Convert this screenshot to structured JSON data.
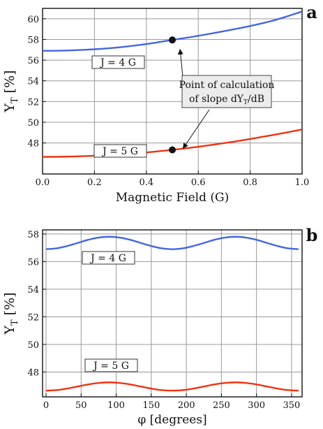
{
  "chart_data": [
    {
      "type": "line",
      "panel_label": "a",
      "xlabel": "Magnetic Field (G)",
      "ylabel_main": "Y",
      "ylabel_sub": "T",
      "ylabel_unit": "[%]",
      "xlim": [
        0.0,
        1.0
      ],
      "ylim": [
        45.0,
        61.0
      ],
      "x_ticks": [
        0.0,
        0.2,
        0.4,
        0.6,
        0.8,
        1.0
      ],
      "x_tick_labels": [
        "0.0",
        "0.2",
        "0.4",
        "0.6",
        "0.8",
        "1.0"
      ],
      "y_ticks": [
        48,
        50,
        52,
        54,
        56,
        58,
        60
      ],
      "y_tick_labels": [
        "48",
        "50",
        "52",
        "54",
        "56",
        "58",
        "60"
      ],
      "grid": true,
      "series": [
        {
          "name": "J = 4 G",
          "color": "#4466dd",
          "x": [
            0.0,
            0.1,
            0.2,
            0.3,
            0.4,
            0.5,
            0.6,
            0.7,
            0.8,
            0.9,
            1.0
          ],
          "values": [
            56.9,
            56.94,
            57.05,
            57.25,
            57.55,
            57.95,
            58.35,
            58.8,
            59.3,
            59.9,
            60.7
          ]
        },
        {
          "name": "J = 5 G",
          "color": "#ee3311",
          "x": [
            0.0,
            0.1,
            0.2,
            0.3,
            0.4,
            0.5,
            0.6,
            0.7,
            0.8,
            0.9,
            1.0
          ],
          "values": [
            46.65,
            46.68,
            46.76,
            46.9,
            47.08,
            47.33,
            47.63,
            47.98,
            48.38,
            48.82,
            49.3
          ]
        }
      ],
      "points": [
        {
          "x": 0.5,
          "y": 57.95
        },
        {
          "x": 0.5,
          "y": 47.33
        }
      ],
      "annotation": {
        "line1": "Point of calculation",
        "line2_prefix": "of slope dY",
        "line2_sub": "T",
        "line2_suffix": "/dB"
      }
    },
    {
      "type": "line",
      "panel_label": "b",
      "xlabel": "φ [degrees]",
      "ylabel_main": "Y",
      "ylabel_sub": "T",
      "ylabel_unit": "[%]",
      "xlim": [
        -5,
        365
      ],
      "ylim": [
        46.2,
        58.3
      ],
      "x_ticks": [
        0,
        50,
        100,
        150,
        200,
        250,
        300,
        350
      ],
      "x_tick_labels": [
        "0",
        "50",
        "100",
        "150",
        "200",
        "250",
        "300",
        "350"
      ],
      "y_ticks": [
        48,
        50,
        52,
        54,
        56,
        58
      ],
      "y_tick_labels": [
        "48",
        "50",
        "52",
        "54",
        "56",
        "58"
      ],
      "grid": true,
      "series": [
        {
          "name": "J = 4 G",
          "color": "#4466dd",
          "x": [
            0,
            15,
            30,
            45,
            60,
            75,
            90,
            105,
            120,
            135,
            150,
            165,
            180,
            195,
            210,
            225,
            240,
            255,
            270,
            285,
            300,
            315,
            330,
            345,
            360
          ],
          "values": [
            56.9,
            56.96,
            57.13,
            57.35,
            57.58,
            57.74,
            57.8,
            57.74,
            57.58,
            57.35,
            57.13,
            56.96,
            56.9,
            56.96,
            57.13,
            57.35,
            57.58,
            57.74,
            57.8,
            57.74,
            57.58,
            57.35,
            57.13,
            56.96,
            56.9
          ]
        },
        {
          "name": "J = 5 G",
          "color": "#ee3311",
          "x": [
            0,
            15,
            30,
            45,
            60,
            75,
            90,
            105,
            120,
            135,
            150,
            165,
            180,
            195,
            210,
            225,
            240,
            255,
            270,
            285,
            300,
            315,
            330,
            345,
            360
          ],
          "values": [
            46.65,
            46.69,
            46.8,
            46.95,
            47.1,
            47.21,
            47.25,
            47.21,
            47.1,
            46.95,
            46.8,
            46.69,
            46.65,
            46.69,
            46.8,
            46.95,
            47.1,
            47.21,
            47.25,
            47.21,
            47.1,
            46.95,
            46.8,
            46.69,
            46.65
          ]
        }
      ]
    }
  ]
}
